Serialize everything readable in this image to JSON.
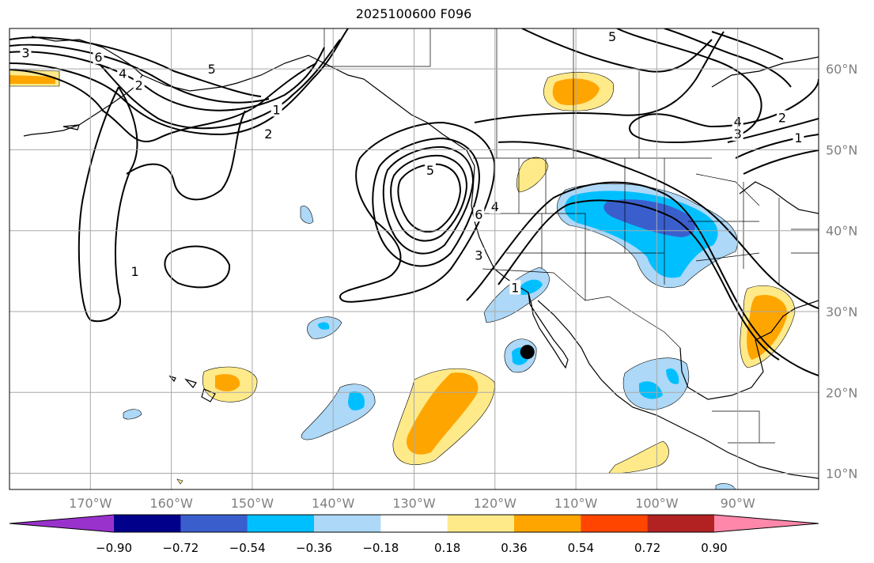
{
  "title": "2025100600 F096",
  "map": {
    "lon_min": -180,
    "lon_max": -80,
    "lat_min": 8,
    "lat_max": 65,
    "longitude_labels": [
      "170°W",
      "160°W",
      "150°W",
      "140°W",
      "130°W",
      "120°W",
      "110°W",
      "100°W",
      "90°W"
    ],
    "latitude_labels": [
      "10°N",
      "20°N",
      "30°N",
      "40°N",
      "50°N",
      "60°N"
    ],
    "gridlines": true,
    "colors": {
      "land_outline": "#000000",
      "grid": "#a8a8a8",
      "contour": "#000000",
      "tick_label": "#7f7f7f"
    }
  },
  "colorbar": {
    "tick_labels": [
      "−0.90",
      "−0.72",
      "−0.54",
      "−0.36",
      "−0.18",
      "0.18",
      "0.36",
      "0.54",
      "0.72",
      "0.90"
    ],
    "colors": [
      "#9932cc",
      "#00008b",
      "#3a5fcd",
      "#00bfff",
      "#add8f7",
      "#ffffff",
      "#ffea8a",
      "#ffa500",
      "#ff4500",
      "#b22222",
      "#ff88aa"
    ],
    "extend": "both"
  },
  "marker": {
    "lon": -116,
    "lat": 25,
    "color": "#000000"
  },
  "contour_labels": [
    {
      "text": "3",
      "lon": -178,
      "lat": 62
    },
    {
      "text": "6",
      "lon": -169,
      "lat": 61.5
    },
    {
      "text": "4",
      "lon": -166,
      "lat": 59.5
    },
    {
      "text": "2",
      "lon": -164,
      "lat": 58
    },
    {
      "text": "5",
      "lon": -155,
      "lat": 60
    },
    {
      "text": "1",
      "lon": -147,
      "lat": 55
    },
    {
      "text": "2",
      "lon": -148,
      "lat": 52
    },
    {
      "text": "1",
      "lon": -164.5,
      "lat": 35
    },
    {
      "text": "5",
      "lon": -128,
      "lat": 47.5
    },
    {
      "text": "6",
      "lon": -122,
      "lat": 42
    },
    {
      "text": "4",
      "lon": -120,
      "lat": 43
    },
    {
      "text": "3",
      "lon": -122,
      "lat": 37
    },
    {
      "text": "1",
      "lon": -117.5,
      "lat": 33
    },
    {
      "text": "5",
      "lon": -105.5,
      "lat": 64
    },
    {
      "text": "4",
      "lon": -90,
      "lat": 53.5
    },
    {
      "text": "3",
      "lon": -90,
      "lat": 52
    },
    {
      "text": "2",
      "lon": -84.5,
      "lat": 54
    },
    {
      "text": "1",
      "lon": -82.5,
      "lat": 51.5
    }
  ]
}
